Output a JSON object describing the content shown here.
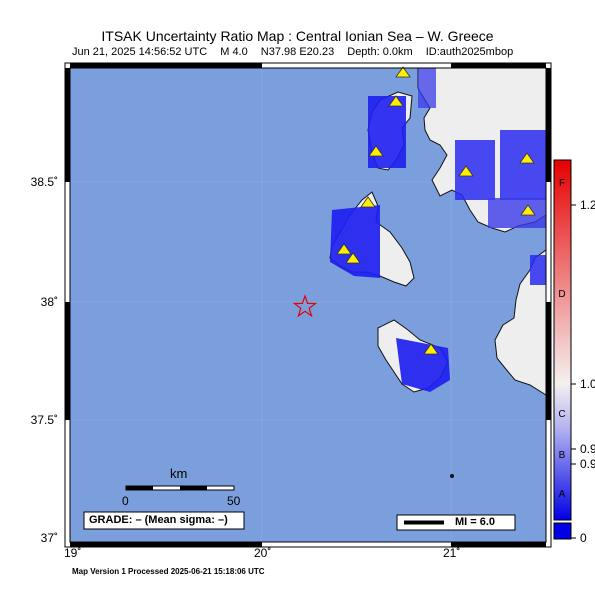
{
  "header": {
    "title": "ITSAK Uncertainty Ratio Map : Central Ionian Sea – W. Greece",
    "datetime": "Jun 21, 2025 14:56:52 UTC",
    "magnitude": "M 4.0",
    "location": "N37.98 E20.23",
    "depth": "Depth: 0.0km",
    "event_id": "ID:auth2025mbop"
  },
  "axes": {
    "lat_labels": [
      "38.5˚",
      "38˚",
      "37.5˚",
      "37˚"
    ],
    "lon_labels": [
      "19˚",
      "20˚",
      "21˚"
    ]
  },
  "scale_bar": {
    "unit": "km",
    "min_label": "0",
    "max_label": "50"
  },
  "grade_box": "GRADE: – (Mean sigma: –)",
  "mi_legend": "MI = 6.0",
  "colorbar": {
    "letters": [
      "F",
      "D",
      "C",
      "B",
      "A"
    ],
    "values": [
      "1.2",
      "1.0",
      "0.9",
      "0.9",
      "0"
    ],
    "top_color": "#e60000",
    "mid_color": "#f5f0f0",
    "bottom_color": "#0000e6"
  },
  "footer": "Map Version 1 Processed 2025-06-21 15:18:06 UTC",
  "colors": {
    "sea": "#7b9fdd",
    "land": "#eeeeee",
    "station": "#ffee00",
    "epicenter": "#e60000"
  },
  "legend_icons": [
    "station-triangle-icon",
    "epicenter-star-icon"
  ]
}
